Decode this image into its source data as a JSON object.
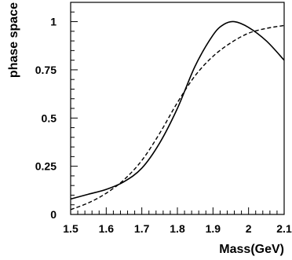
{
  "chart_data": {
    "type": "line",
    "title": "",
    "xlabel": "Mass(GeV)",
    "ylabel": "phase space",
    "xlim": [
      1.5,
      2.1
    ],
    "ylim": [
      0,
      1.1
    ],
    "grid": false,
    "x_ticks": [
      "1.5",
      "1.6",
      "1.7",
      "1.8",
      "1.9",
      "2",
      "2.1"
    ],
    "y_ticks": [
      "0",
      "0.25",
      "0.5",
      "0.75",
      "1"
    ],
    "x_tick_values": [
      1.5,
      1.6,
      1.7,
      1.8,
      1.9,
      2.0,
      2.1
    ],
    "y_tick_values": [
      0,
      0.25,
      0.5,
      0.75,
      1.0
    ],
    "series": [
      {
        "style": "solid",
        "color": "#000000",
        "x": [
          1.5,
          1.55,
          1.6,
          1.65,
          1.7,
          1.75,
          1.8,
          1.85,
          1.9,
          1.93,
          1.96,
          2.0,
          2.05,
          2.1
        ],
        "y": [
          0.08,
          0.105,
          0.13,
          0.17,
          0.24,
          0.37,
          0.55,
          0.77,
          0.93,
          0.985,
          1.0,
          0.97,
          0.9,
          0.8
        ]
      },
      {
        "style": "dashed",
        "color": "#000000",
        "x": [
          1.5,
          1.55,
          1.6,
          1.65,
          1.7,
          1.75,
          1.8,
          1.85,
          1.9,
          1.95,
          2.0,
          2.05,
          2.1
        ],
        "y": [
          0.025,
          0.06,
          0.11,
          0.18,
          0.28,
          0.42,
          0.58,
          0.72,
          0.82,
          0.89,
          0.94,
          0.965,
          0.98
        ]
      }
    ]
  }
}
